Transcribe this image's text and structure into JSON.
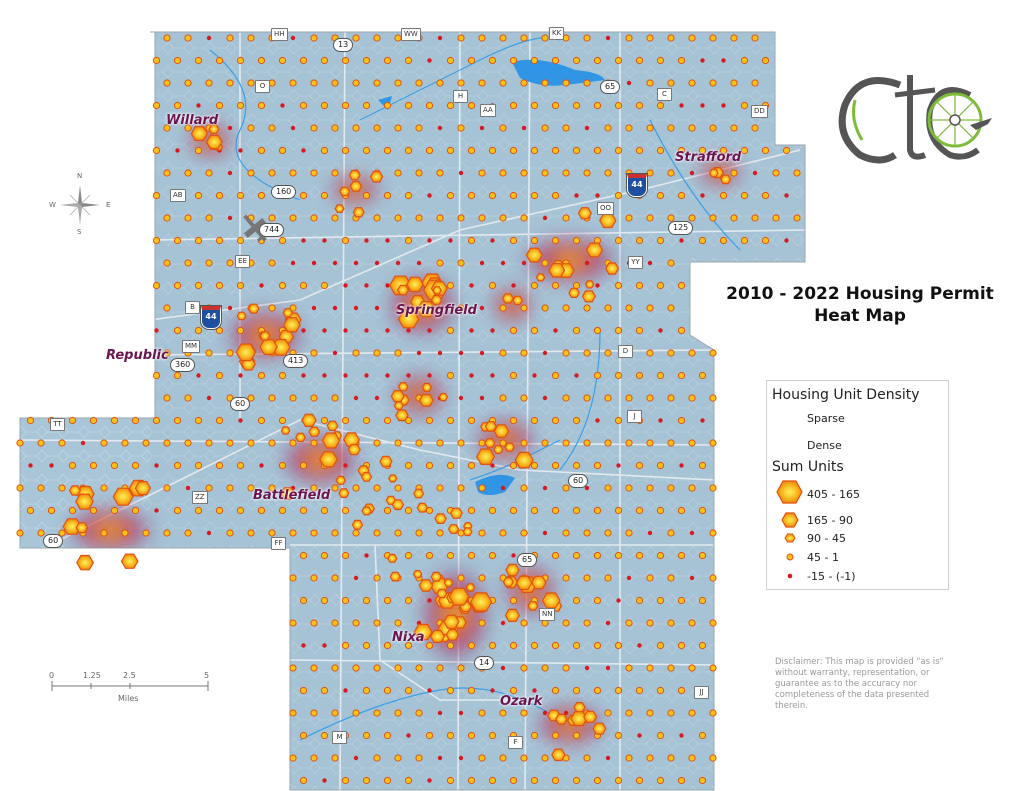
{
  "title": {
    "line1": "2010 - 2022 Housing Permit",
    "line2": "Heat Map"
  },
  "legend": {
    "density_title": "Housing Unit Density",
    "sparse_label": "Sparse",
    "dense_label": "Dense",
    "units_title": "Sum Units",
    "classes": [
      {
        "label": "405 - 165",
        "symbol": "large-hexagon"
      },
      {
        "label": "165 - 90",
        "symbol": "medium-hexagon"
      },
      {
        "label": "90 - 45",
        "symbol": "small-hexagon"
      },
      {
        "label": "45 - 1",
        "symbol": "yellow-dot"
      },
      {
        "label": "-15 - (-1)",
        "symbol": "red-dot"
      }
    ],
    "colors": {
      "sparse": "#8fb7cf",
      "mid": "#8a1f6a",
      "dense_red": "#d41a1a",
      "dense_yellow": "#ffe600",
      "hex_fill": "#f5a41a",
      "hex_stroke": "#e0520f",
      "negative_dot": "#d71920"
    }
  },
  "places": [
    "Willard",
    "Strafford",
    "Springfield",
    "Republic",
    "Battlefield",
    "Nixa",
    "Ozark"
  ],
  "routes": {
    "interstate": [
      "44",
      "44"
    ],
    "ovals": [
      "13",
      "65",
      "160",
      "744",
      "125",
      "413",
      "360",
      "60",
      "60",
      "60",
      "65",
      "14"
    ],
    "letters": [
      "HH",
      "WW",
      "KK",
      "O",
      "H",
      "AA",
      "C",
      "DD",
      "AB",
      "OO",
      "EE",
      "YY",
      "B",
      "MM",
      "D",
      "J",
      "TT",
      "ZZ",
      "FF",
      "NN",
      "JJ",
      "M",
      "F"
    ]
  },
  "compass": {
    "n": "N",
    "s": "S",
    "e": "E",
    "w": "W"
  },
  "scale": {
    "ticks": [
      "0",
      "1.25",
      "2.5",
      "5"
    ],
    "unit": "Miles"
  },
  "logo": {
    "text": "CTC"
  },
  "disclaimer": "Disclaimer: This map is provided \"as is\" without warranty, representation, or guarantee as to the accuracy nor completeness of the data presented therein."
}
